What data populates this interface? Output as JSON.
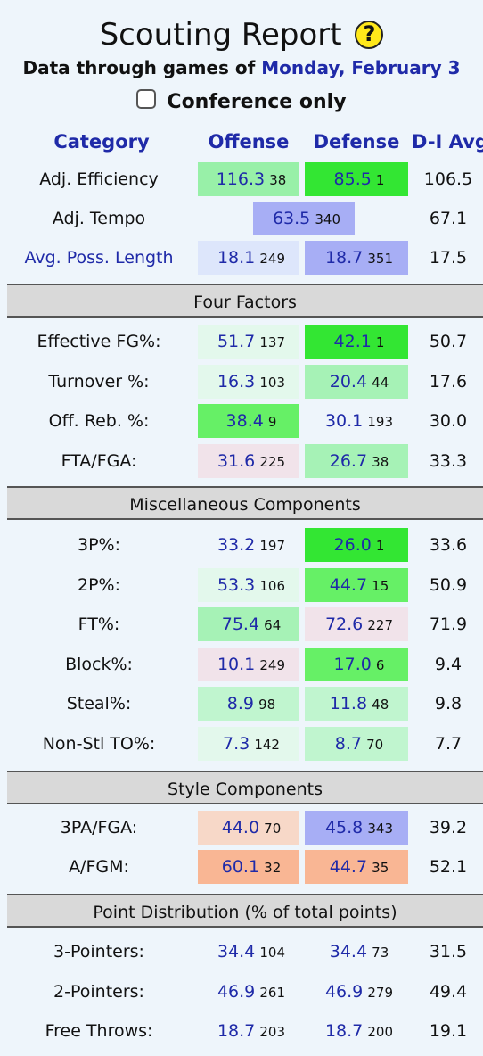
{
  "title": "Scouting Report",
  "help_icon": "?",
  "subtitle": {
    "prefix": "Data through games of ",
    "date": "Monday, February 3"
  },
  "conference_only_label": "Conference only",
  "headers": {
    "category": "Category",
    "offense": "Offense",
    "defense": "Defense",
    "avg": "D-I Avg"
  },
  "colors": {
    "accent": "#1f2aa8",
    "green_strong": "#33e633",
    "green_mid": "#66f066",
    "green_light": "#98f0a8",
    "green_pale": "#c0f5cf",
    "green_faint": "#e3f8ec",
    "blue_mid": "#a7aef5",
    "blue_light": "#dde6fb",
    "pink_faint": "#f1e3ea",
    "orange_light": "#f7d8c8",
    "orange_mid": "#f9b694",
    "section_bg": "#d9d9d9"
  },
  "top_rows": [
    {
      "label": "Adj. Efficiency",
      "off": {
        "v": "116.3",
        "r": "38"
      },
      "def": {
        "v": "85.5",
        "r": "1"
      },
      "avg": "106.5"
    },
    {
      "label": "Adj. Tempo",
      "tempo": {
        "v": "63.5",
        "r": "340"
      },
      "avg": "67.1"
    },
    {
      "label": "Avg. Poss. Length",
      "off": {
        "v": "18.1",
        "r": "249"
      },
      "def": {
        "v": "18.7",
        "r": "351"
      },
      "avg": "17.5"
    }
  ],
  "four_factors": {
    "title": "Four Factors",
    "rows": [
      {
        "label": "Effective FG%:",
        "off": {
          "v": "51.7",
          "r": "137"
        },
        "def": {
          "v": "42.1",
          "r": "1"
        },
        "avg": "50.7"
      },
      {
        "label": "Turnover %:",
        "off": {
          "v": "16.3",
          "r": "103"
        },
        "def": {
          "v": "20.4",
          "r": "44"
        },
        "avg": "17.6"
      },
      {
        "label": "Off. Reb. %:",
        "off": {
          "v": "38.4",
          "r": "9"
        },
        "def": {
          "v": "30.1",
          "r": "193"
        },
        "avg": "30.0"
      },
      {
        "label": "FTA/FGA:",
        "off": {
          "v": "31.6",
          "r": "225"
        },
        "def": {
          "v": "26.7",
          "r": "38"
        },
        "avg": "33.3"
      }
    ]
  },
  "misc": {
    "title": "Miscellaneous Components",
    "rows": [
      {
        "label": "3P%:",
        "off": {
          "v": "33.2",
          "r": "197"
        },
        "def": {
          "v": "26.0",
          "r": "1"
        },
        "avg": "33.6"
      },
      {
        "label": "2P%:",
        "off": {
          "v": "53.3",
          "r": "106"
        },
        "def": {
          "v": "44.7",
          "r": "15"
        },
        "avg": "50.9"
      },
      {
        "label": "FT%:",
        "off": {
          "v": "75.4",
          "r": "64"
        },
        "def": {
          "v": "72.6",
          "r": "227"
        },
        "avg": "71.9"
      },
      {
        "label": "Block%:",
        "off": {
          "v": "10.1",
          "r": "249"
        },
        "def": {
          "v": "17.0",
          "r": "6"
        },
        "avg": "9.4"
      },
      {
        "label": "Steal%:",
        "off": {
          "v": "8.9",
          "r": "98"
        },
        "def": {
          "v": "11.8",
          "r": "48"
        },
        "avg": "9.8"
      },
      {
        "label": "Non-Stl TO%:",
        "off": {
          "v": "7.3",
          "r": "142"
        },
        "def": {
          "v": "8.7",
          "r": "70"
        },
        "avg": "7.7"
      }
    ]
  },
  "style": {
    "title": "Style Components",
    "rows": [
      {
        "label": "3PA/FGA:",
        "off": {
          "v": "44.0",
          "r": "70"
        },
        "def": {
          "v": "45.8",
          "r": "343"
        },
        "avg": "39.2"
      },
      {
        "label": "A/FGM:",
        "off": {
          "v": "60.1",
          "r": "32"
        },
        "def": {
          "v": "44.7",
          "r": "35"
        },
        "avg": "52.1"
      }
    ]
  },
  "points": {
    "title": "Point Distribution (% of total points)",
    "rows": [
      {
        "label": "3-Pointers:",
        "off": {
          "v": "34.4",
          "r": "104"
        },
        "def": {
          "v": "34.4",
          "r": "73"
        },
        "avg": "31.5"
      },
      {
        "label": "2-Pointers:",
        "off": {
          "v": "46.9",
          "r": "261"
        },
        "def": {
          "v": "46.9",
          "r": "279"
        },
        "avg": "49.4"
      },
      {
        "label": "Free Throws:",
        "off": {
          "v": "18.7",
          "r": "203"
        },
        "def": {
          "v": "18.7",
          "r": "200"
        },
        "avg": "19.1"
      }
    ]
  }
}
